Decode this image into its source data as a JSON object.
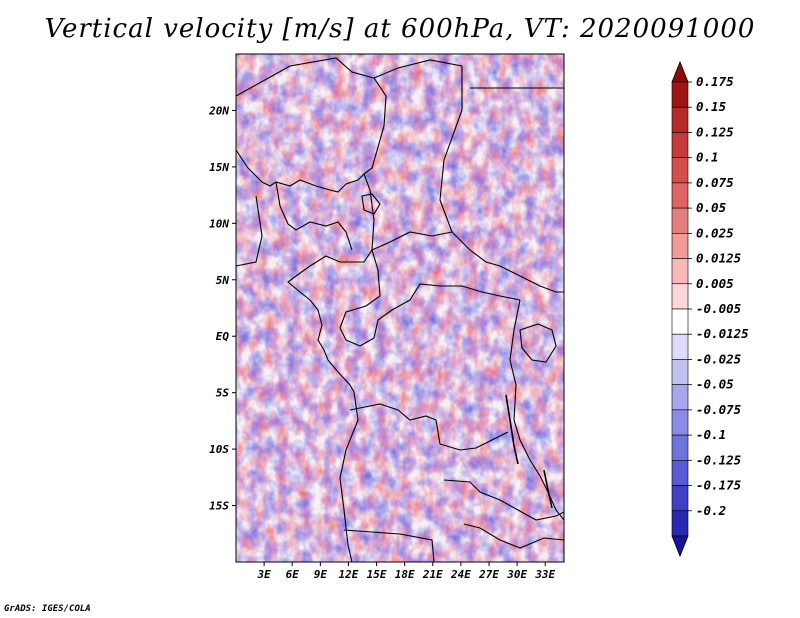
{
  "title": "Vertical velocity [m/s] at 600hPa, VT: 2020091000",
  "credit": "GrADS: IGES/COLA",
  "map": {
    "lon_range": [
      0,
      35
    ],
    "lat_range": [
      -20,
      25
    ],
    "lat_labels": [
      {
        "lat": 20,
        "label": "20N"
      },
      {
        "lat": 15,
        "label": "15N"
      },
      {
        "lat": 10,
        "label": "10N"
      },
      {
        "lat": 5,
        "label": "5N"
      },
      {
        "lat": 0,
        "label": "EQ"
      },
      {
        "lat": -5,
        "label": "5S"
      },
      {
        "lat": -10,
        "label": "10S"
      },
      {
        "lat": -15,
        "label": "15S"
      }
    ],
    "lon_labels": [
      {
        "lon": 3,
        "label": "3E"
      },
      {
        "lon": 6,
        "label": "6E"
      },
      {
        "lon": 9,
        "label": "9E"
      },
      {
        "lon": 12,
        "label": "12E"
      },
      {
        "lon": 15,
        "label": "15E"
      },
      {
        "lon": 18,
        "label": "18E"
      },
      {
        "lon": 21,
        "label": "21E"
      },
      {
        "lon": 24,
        "label": "24E"
      },
      {
        "lon": 27,
        "label": "27E"
      },
      {
        "lon": 30,
        "label": "30E"
      },
      {
        "lon": 33,
        "label": "33E"
      }
    ]
  },
  "colorbar": {
    "levels": [
      {
        "label": "0.175",
        "color": "#a01515"
      },
      {
        "label": "0.15",
        "color": "#b52a2a"
      },
      {
        "label": "0.125",
        "color": "#c53a3a"
      },
      {
        "label": "0.1",
        "color": "#d54e4e"
      },
      {
        "label": "0.075",
        "color": "#df6464"
      },
      {
        "label": "0.05",
        "color": "#e77e7e"
      },
      {
        "label": "0.025",
        "color": "#f09a9a"
      },
      {
        "label": "0.0125",
        "color": "#f7b8b8"
      },
      {
        "label": "0.005",
        "color": "#fcd6d6"
      },
      {
        "label": "-0.005",
        "color": "#ffffff"
      },
      {
        "label": "-0.0125",
        "color": "#dcdcf8"
      },
      {
        "label": "-0.025",
        "color": "#c2c2f2"
      },
      {
        "label": "-0.05",
        "color": "#a6a6ec"
      },
      {
        "label": "-0.075",
        "color": "#8c8ce4"
      },
      {
        "label": "-0.1",
        "color": "#7272dc"
      },
      {
        "label": "-0.125",
        "color": "#5a5ad2"
      },
      {
        "label": "-0.175",
        "color": "#4040c4"
      },
      {
        "label": "-0.2",
        "color": "#2828b0"
      }
    ],
    "top_arrow_color": "#8c0a0a",
    "bottom_arrow_color": "#14149c"
  }
}
